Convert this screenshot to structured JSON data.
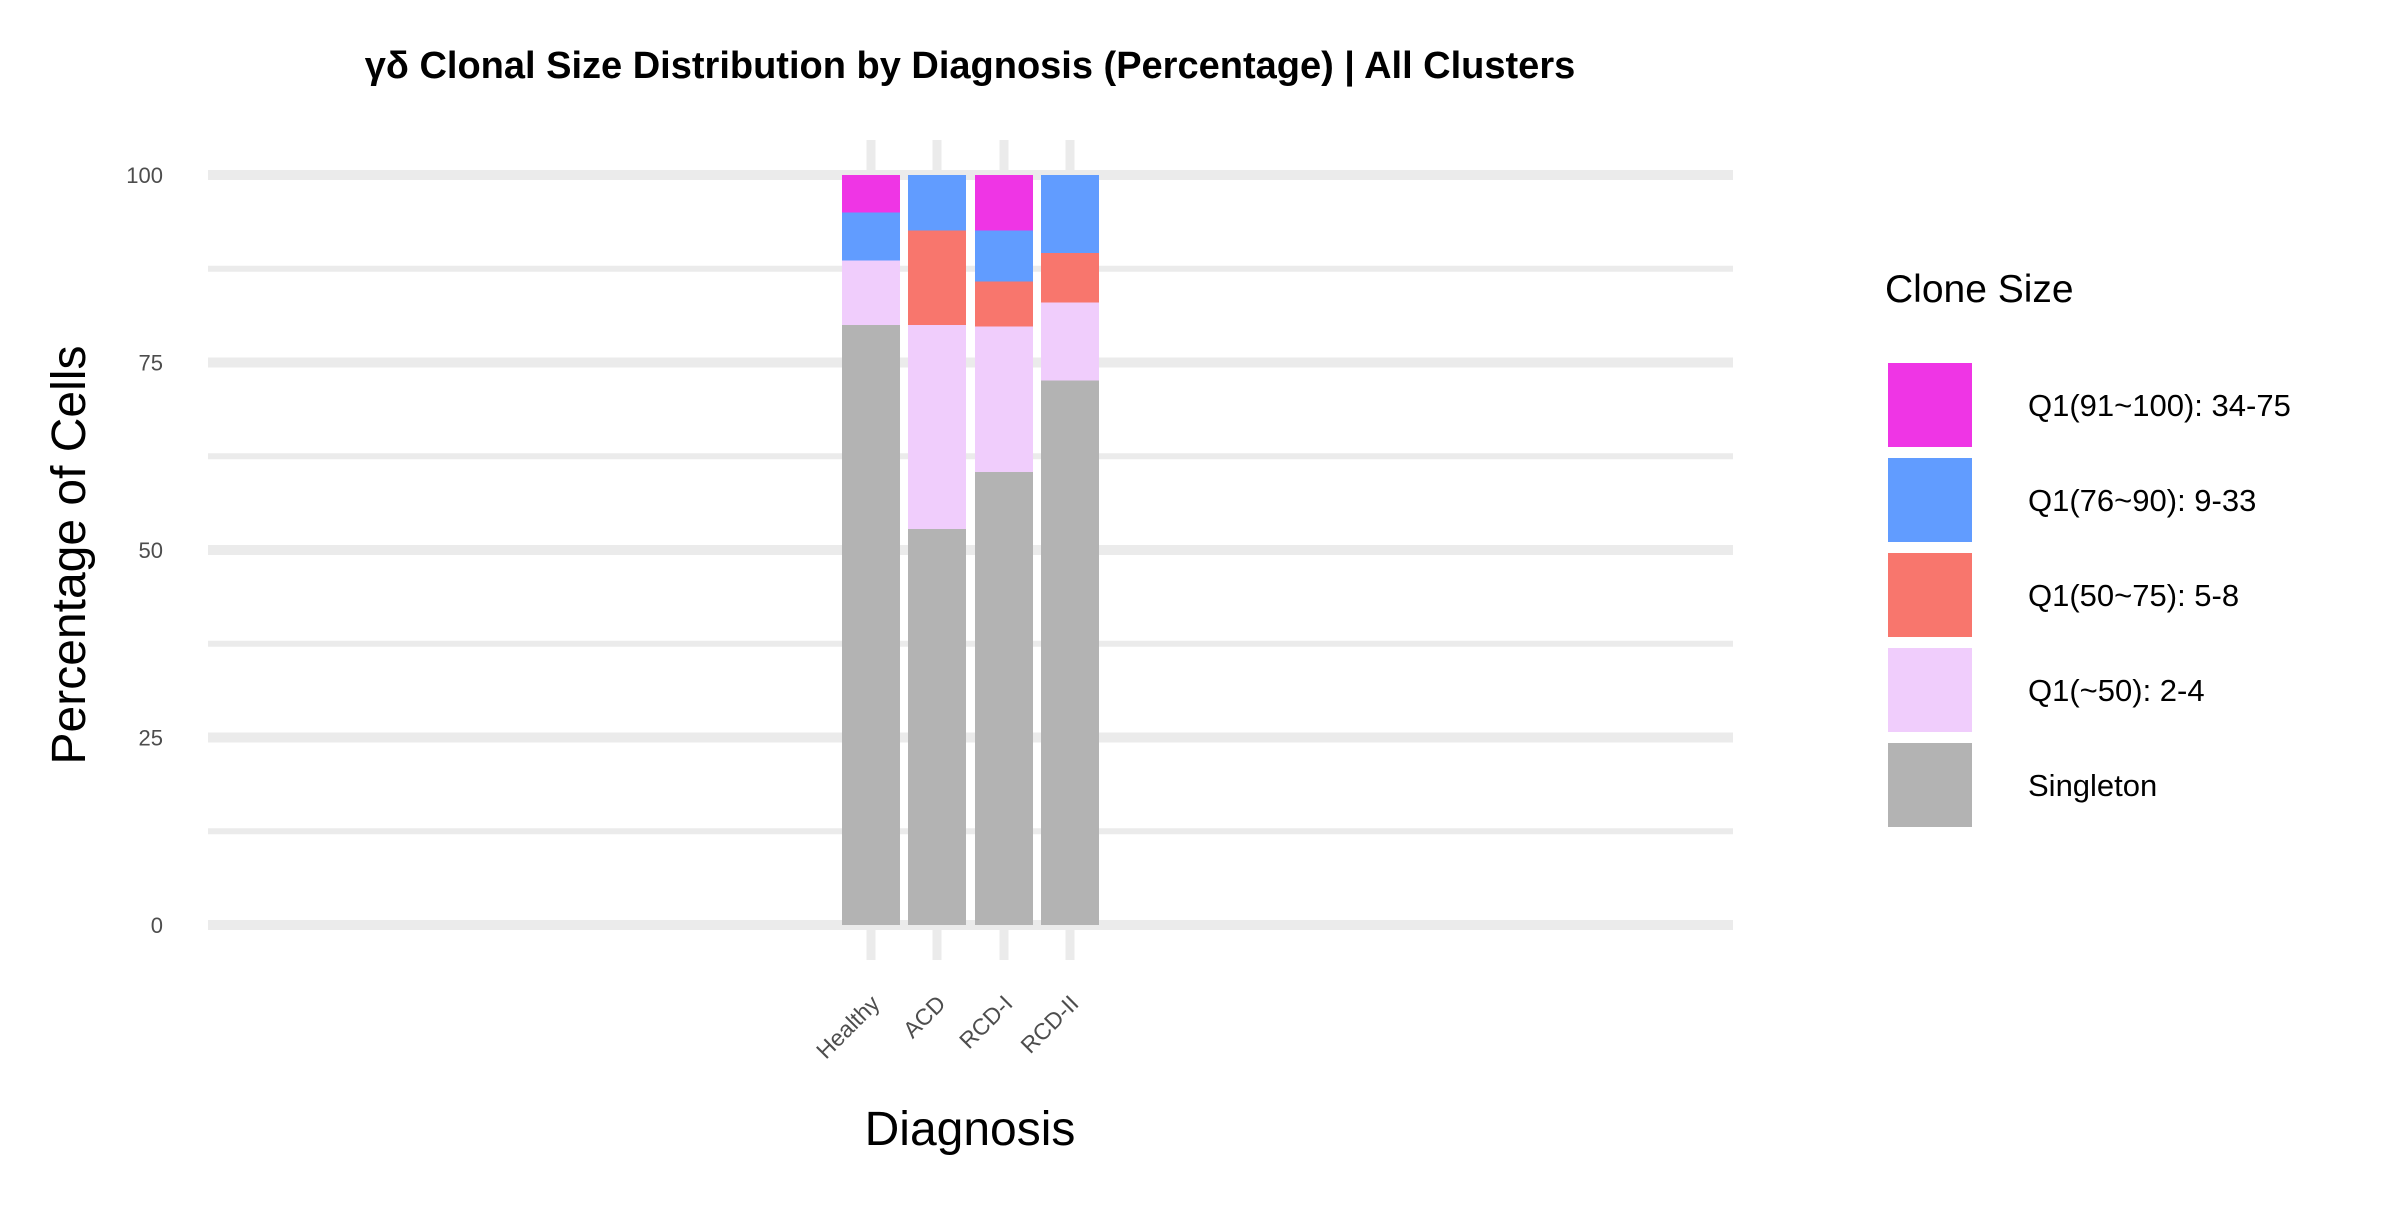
{
  "chart_data": {
    "type": "bar",
    "stacked": true,
    "title": "γδ Clonal Size Distribution by Diagnosis (Percentage) | All Clusters",
    "xlabel": "Diagnosis",
    "ylabel": "Percentage of Cells",
    "categories": [
      "Healthy",
      "ACD",
      "RCD-I",
      "RCD-II"
    ],
    "ylim": [
      0,
      100
    ],
    "yticks": [
      0,
      25,
      50,
      75,
      100
    ],
    "grid": true,
    "legend": {
      "title": "Clone Size",
      "position": "right"
    },
    "series": [
      {
        "name": "Singleton",
        "color": "#B3B3B3",
        "values": [
          80.0,
          52.8,
          60.4,
          72.6
        ]
      },
      {
        "name": "Q1(~50): 2-4",
        "color": "#F0CDFC",
        "values": [
          8.6,
          27.2,
          19.4,
          10.4
        ]
      },
      {
        "name": "Q1(50~75): 5-8",
        "color": "#F8766D",
        "values": [
          0.0,
          12.6,
          6.0,
          6.6
        ]
      },
      {
        "name": "Q1(76~90): 9-33",
        "color": "#619CFF",
        "values": [
          6.4,
          7.4,
          6.8,
          10.4
        ]
      },
      {
        "name": "Q1(91~100): 34-75",
        "color": "#EF35E5",
        "values": [
          5.0,
          0.0,
          7.4,
          0.0
        ]
      }
    ]
  }
}
